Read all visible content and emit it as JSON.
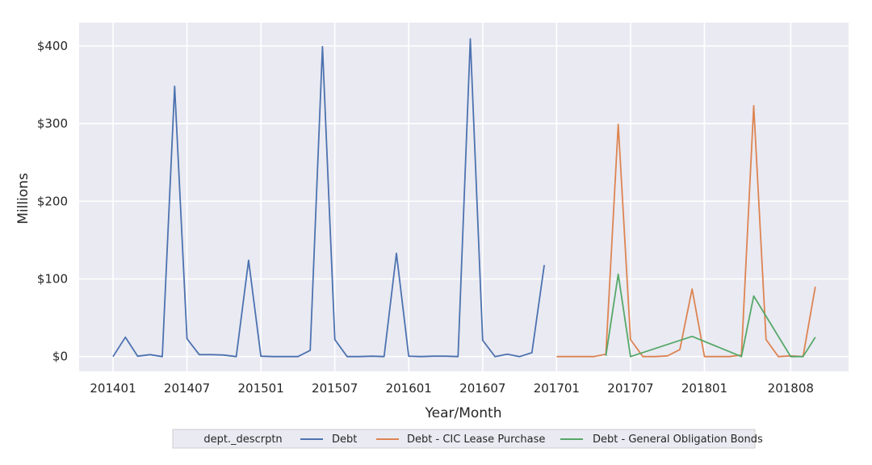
{
  "chart_data": {
    "type": "line",
    "xlabel": "Year/Month",
    "ylabel": "Millions",
    "x_tick_labels": [
      "201401",
      "201407",
      "201501",
      "201507",
      "201601",
      "201607",
      "201701",
      "201707",
      "201801",
      "201808"
    ],
    "y_ticks": [
      0,
      100,
      200,
      300,
      400
    ],
    "y_tick_labels": [
      "$0",
      "$100",
      "$200",
      "$300",
      "$400"
    ],
    "ylim": [
      -19,
      430
    ],
    "grid": true,
    "legend_position": "bottom-center",
    "legend_title": "dept._descrptn",
    "series": [
      {
        "name": "Debt",
        "color": "#4c72b0",
        "x": [
          "201401",
          "201402",
          "201403",
          "201404",
          "201405",
          "201406",
          "201407",
          "201408",
          "201409",
          "201410",
          "201411",
          "201412",
          "201501",
          "201502",
          "201503",
          "201504",
          "201505",
          "201506",
          "201507",
          "201508",
          "201509",
          "201510",
          "201511",
          "201512",
          "201601",
          "201602",
          "201603",
          "201604",
          "201605",
          "201606",
          "201607",
          "201608",
          "201609",
          "201610",
          "201611",
          "201612"
        ],
        "values": [
          0,
          25,
          0.5,
          2.5,
          0,
          348,
          23,
          2.5,
          2.5,
          2,
          0,
          124,
          0.5,
          0,
          0,
          0,
          8,
          399,
          22,
          0,
          0,
          0.5,
          0,
          133,
          0.5,
          0,
          0.5,
          0.5,
          0,
          409,
          21,
          0,
          3,
          0,
          5,
          118
        ]
      },
      {
        "name": "Debt - CIC Lease Purchase",
        "color": "#dd8452",
        "x": [
          "201701",
          "201702",
          "201703",
          "201704",
          "201705",
          "201706",
          "201707",
          "201708",
          "201709",
          "201710",
          "201711",
          "201712",
          "201801",
          "201802",
          "201803",
          "201804",
          "201805",
          "201806",
          "201807",
          "201808",
          "201809",
          "201810"
        ],
        "values": [
          0,
          0,
          0,
          0,
          3,
          299,
          22,
          0,
          0,
          1,
          9,
          87,
          0,
          0,
          0,
          2,
          323,
          22,
          0,
          1,
          0,
          90
        ]
      },
      {
        "name": "Debt - General Obligation Bonds",
        "color": "#55a868",
        "x": [
          "201705",
          "201706",
          "201707",
          "201712",
          "201804",
          "201805",
          "201808",
          "201809",
          "201810"
        ],
        "values": [
          1,
          106,
          0,
          26,
          0,
          78,
          0,
          0,
          25
        ]
      }
    ]
  }
}
